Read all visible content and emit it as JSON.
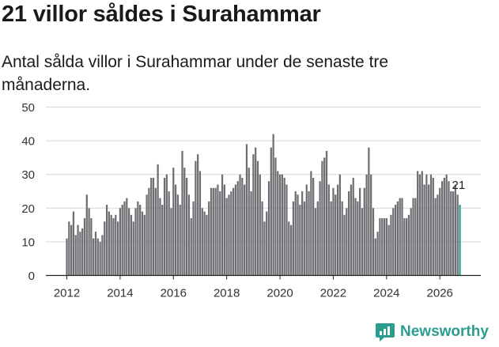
{
  "header": {
    "title": "21 villor såldes i Surahammar",
    "subtitle": "Antal sålda villor i Surahammar under de senaste tre månaderna."
  },
  "brand": {
    "name": "Newsworthy"
  },
  "colors": {
    "bar": "#6f6e73",
    "highlight": "#2a9d8f",
    "grid": "#d7d7d7",
    "axis": "#222222"
  },
  "chart_data": {
    "type": "bar",
    "title": "21 villor såldes i Surahammar",
    "subtitle": "Antal sålda villor i Surahammar under de senaste tre månaderna.",
    "xlabel": "",
    "ylabel": "",
    "ylim": [
      0,
      50
    ],
    "yticks": [
      0,
      10,
      20,
      30,
      40,
      50
    ],
    "xticks": [
      "2012",
      "2014",
      "2016",
      "2018",
      "2020",
      "2022",
      "2024",
      "2026"
    ],
    "grid": true,
    "start": "2012-01",
    "frequency": "monthly (rolling 3-month totals)",
    "values": [
      11,
      16,
      15,
      19,
      12,
      15,
      13,
      14,
      17,
      24,
      20,
      17,
      11,
      13,
      11,
      10,
      12,
      16,
      21,
      19,
      18,
      17,
      18,
      16,
      20,
      21,
      22,
      23,
      20,
      18,
      16,
      20,
      22,
      21,
      19,
      18,
      24,
      26,
      29,
      29,
      26,
      33,
      23,
      21,
      29,
      30,
      25,
      20,
      32,
      27,
      24,
      21,
      37,
      32,
      29,
      24,
      17,
      22,
      34,
      36,
      31,
      20,
      19,
      18,
      22,
      26,
      26,
      26,
      27,
      25,
      30,
      27,
      23,
      24,
      25,
      26,
      27,
      28,
      30,
      29,
      27,
      39,
      32,
      25,
      36,
      38,
      34,
      30,
      22,
      16,
      19,
      28,
      38,
      42,
      35,
      31,
      30,
      30,
      29,
      27,
      16,
      15,
      22,
      25,
      24,
      21,
      25,
      22,
      27,
      25,
      31,
      29,
      20,
      22,
      28,
      34,
      35,
      37,
      27,
      22,
      26,
      24,
      27,
      30,
      22,
      18,
      20,
      25,
      27,
      29,
      23,
      22,
      26,
      20,
      26,
      30,
      38,
      30,
      20,
      11,
      13,
      17,
      17,
      17,
      17,
      15,
      18,
      20,
      21,
      22,
      23,
      23,
      17,
      17,
      18,
      20,
      23,
      23,
      31,
      30,
      31,
      27,
      30,
      27,
      30,
      29,
      23,
      24,
      26,
      28,
      29,
      30,
      28,
      25,
      25,
      27,
      24,
      21
    ],
    "last_value_label": "21"
  }
}
